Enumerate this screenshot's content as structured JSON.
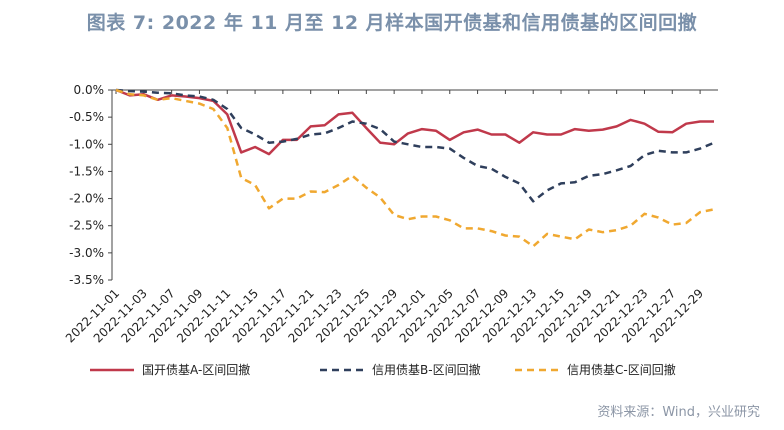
{
  "title": "图表 7:  2022 年 11 月至 12 月样本国开债基和信用债基的区间回撤",
  "source": "资料来源：Wind，兴业研究",
  "chart_data": {
    "type": "line",
    "ylim": [
      -3.5,
      0
    ],
    "yticks": [
      "0.0%",
      "-0.5%",
      "-1.0%",
      "-1.5%",
      "-2.0%",
      "-2.5%",
      "-3.0%",
      "-3.5%"
    ],
    "ytick_values": [
      0,
      -0.5,
      -1.0,
      -1.5,
      -2.0,
      -2.5,
      -3.0,
      -3.5
    ],
    "x": [
      "2022-11-01",
      "2022-11-02",
      "2022-11-03",
      "2022-11-04",
      "2022-11-07",
      "2022-11-08",
      "2022-11-09",
      "2022-11-10",
      "2022-11-11",
      "2022-11-14",
      "2022-11-15",
      "2022-11-16",
      "2022-11-17",
      "2022-11-18",
      "2022-11-21",
      "2022-11-22",
      "2022-11-23",
      "2022-11-24",
      "2022-11-25",
      "2022-11-28",
      "2022-11-29",
      "2022-11-30",
      "2022-12-01",
      "2022-12-02",
      "2022-12-05",
      "2022-12-06",
      "2022-12-07",
      "2022-12-08",
      "2022-12-09",
      "2022-12-12",
      "2022-12-13",
      "2022-12-14",
      "2022-12-15",
      "2022-12-16",
      "2022-12-19",
      "2022-12-20",
      "2022-12-21",
      "2022-12-22",
      "2022-12-23",
      "2022-12-26",
      "2022-12-27",
      "2022-12-28",
      "2022-12-29",
      "2022-12-30"
    ],
    "xtick_labels": [
      "2022-11-01",
      "2022-11-03",
      "2022-11-07",
      "2022-11-09",
      "2022-11-11",
      "2022-11-15",
      "2022-11-17",
      "2022-11-21",
      "2022-11-23",
      "2022-11-25",
      "2022-11-29",
      "2022-12-01",
      "2022-12-05",
      "2022-12-07",
      "2022-12-09",
      "2022-12-13",
      "2022-12-15",
      "2022-12-19",
      "2022-12-21",
      "2022-12-23",
      "2022-12-27",
      "2022-12-29"
    ],
    "series": [
      {
        "name": "国开债基A-区间回撤",
        "color": "#c0394b",
        "dash": "solid",
        "values": [
          0,
          -0.1,
          -0.08,
          -0.18,
          -0.1,
          -0.12,
          -0.15,
          -0.2,
          -0.45,
          -1.15,
          -1.05,
          -1.18,
          -0.92,
          -0.92,
          -0.67,
          -0.65,
          -0.45,
          -0.42,
          -0.7,
          -0.97,
          -1.0,
          -0.8,
          -0.72,
          -0.75,
          -0.92,
          -0.78,
          -0.73,
          -0.82,
          -0.82,
          -0.97,
          -0.78,
          -0.82,
          -0.82,
          -0.72,
          -0.75,
          -0.73,
          -0.67,
          -0.55,
          -0.62,
          -0.77,
          -0.78,
          -0.62,
          -0.58,
          -0.58
        ]
      },
      {
        "name": "信用债基B-区间回撤",
        "color": "#2f3f5c",
        "dash": "dashed",
        "values": [
          0,
          -0.02,
          -0.03,
          -0.05,
          -0.06,
          -0.1,
          -0.12,
          -0.18,
          -0.35,
          -0.7,
          -0.82,
          -0.97,
          -0.95,
          -0.9,
          -0.82,
          -0.8,
          -0.7,
          -0.58,
          -0.62,
          -0.72,
          -0.95,
          -1.0,
          -1.05,
          -1.05,
          -1.08,
          -1.25,
          -1.4,
          -1.45,
          -1.6,
          -1.72,
          -2.05,
          -1.85,
          -1.72,
          -1.7,
          -1.58,
          -1.55,
          -1.48,
          -1.4,
          -1.2,
          -1.12,
          -1.15,
          -1.15,
          -1.08,
          -0.97
        ]
      },
      {
        "name": "信用债基C-区间回撤",
        "color": "#f0a830",
        "dash": "dashed",
        "values": [
          0,
          -0.08,
          -0.1,
          -0.18,
          -0.15,
          -0.2,
          -0.25,
          -0.35,
          -0.7,
          -1.62,
          -1.75,
          -2.18,
          -2.0,
          -2.0,
          -1.87,
          -1.88,
          -1.75,
          -1.58,
          -1.8,
          -1.98,
          -2.3,
          -2.38,
          -2.33,
          -2.33,
          -2.4,
          -2.55,
          -2.55,
          -2.6,
          -2.68,
          -2.7,
          -2.88,
          -2.65,
          -2.7,
          -2.75,
          -2.57,
          -2.62,
          -2.58,
          -2.5,
          -2.28,
          -2.35,
          -2.48,
          -2.45,
          -2.25,
          -2.2
        ]
      }
    ],
    "legend_position": "bottom",
    "grid": false
  }
}
